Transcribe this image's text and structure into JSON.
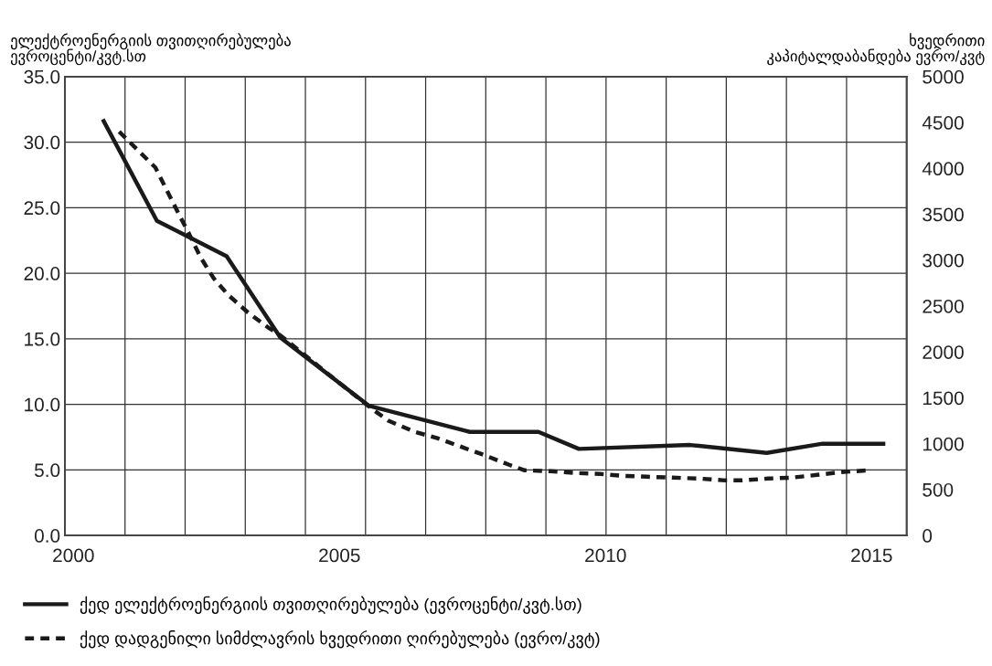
{
  "chart_data": {
    "type": "line",
    "ylabel": "ელექტროენერგიის თვითღირებულება\nევროცენტი/კვტ.სთ",
    "y2label": "ხვედრითი\nკაპიტალდაბანდება ევრო/კვტ",
    "xlim": [
      1999.84,
      2015.66
    ],
    "xticks": [
      {
        "value": 2000,
        "label": "2000"
      },
      {
        "value": 2005,
        "label": "2005"
      },
      {
        "value": 2010,
        "label": "2010"
      },
      {
        "value": 2015,
        "label": "2015"
      },
      {
        "value": 2000.97,
        "label": null
      },
      {
        "value": 2002.1,
        "label": null
      },
      {
        "value": 2003.23,
        "label": null
      },
      {
        "value": 2004.36,
        "label": null
      },
      {
        "value": 2005.49,
        "label": null
      },
      {
        "value": 2006.62,
        "label": null
      },
      {
        "value": 2007.75,
        "label": null
      },
      {
        "value": 2008.88,
        "label": null
      },
      {
        "value": 2010.01,
        "label": null
      },
      {
        "value": 2011.14,
        "label": null
      },
      {
        "value": 2012.27,
        "label": null
      },
      {
        "value": 2013.4,
        "label": null
      },
      {
        "value": 2014.53,
        "label": null
      }
    ],
    "ylim": [
      0,
      35
    ],
    "yticks": [
      {
        "value": 0,
        "label": "0.0"
      },
      {
        "value": 5,
        "label": "5.0"
      },
      {
        "value": 10,
        "label": "10.0"
      },
      {
        "value": 15,
        "label": "15.0"
      },
      {
        "value": 20,
        "label": "20.0"
      },
      {
        "value": 25,
        "label": "25.0"
      },
      {
        "value": 30,
        "label": "30.0"
      },
      {
        "value": 35,
        "label": "35.0"
      }
    ],
    "y2lim": [
      0,
      5000
    ],
    "y2ticks": [
      0,
      500,
      1000,
      1500,
      2000,
      2500,
      3000,
      3500,
      4000,
      4500,
      5000
    ],
    "grid": true,
    "legend": "bottom",
    "series": [
      {
        "name": "ქედ ელექტროენერგიის თვითღირებულება (ევროცენტი/კვტ.სთ)",
        "color": "#1a1a1a",
        "line_style": "solid",
        "x": [
          2000.57,
          2001.57,
          2002.88,
          2003.89,
          2005.55,
          2007.45,
          2008.74,
          2009.5,
          2011.59,
          2013.03,
          2014.08,
          2015.22
        ],
        "values": [
          31.6,
          24.0,
          21.3,
          15.1,
          9.9,
          7.9,
          7.9,
          6.6,
          6.9,
          6.3,
          7.0,
          7.0
        ]
      },
      {
        "name": "ქედ დადგენილი სიმძლავრის ხვედრითი ღირებულება (ევრო/კვტ)",
        "color": "#1a1a1a",
        "line_style": "dashed",
        "axis": "y2",
        "x": [
          2000.86,
          2001.26,
          2001.54,
          2002.0,
          2002.18,
          2002.39,
          2002.64,
          2002.91,
          2003.28,
          2003.65,
          2003.89,
          2004.7,
          2005.61,
          2005.92,
          2006.41,
          2006.84,
          2007.27,
          2007.7,
          2008.19,
          2008.48,
          2008.97,
          2009.47,
          2009.9,
          2010.33,
          2010.77,
          2011.26,
          2011.76,
          2012.25,
          2012.56,
          2013.06,
          2013.49,
          2013.98,
          2014.42,
          2014.95
        ],
        "values": [
          4400,
          4170,
          4010,
          3480,
          3280,
          3030,
          2800,
          2620,
          2430,
          2270,
          2180,
          1800,
          1380,
          1250,
          1130,
          1060,
          970,
          880,
          770,
          710,
          700,
          680,
          670,
          650,
          640,
          630,
          620,
          600,
          600,
          620,
          630,
          660,
          690,
          710
        ]
      }
    ]
  }
}
